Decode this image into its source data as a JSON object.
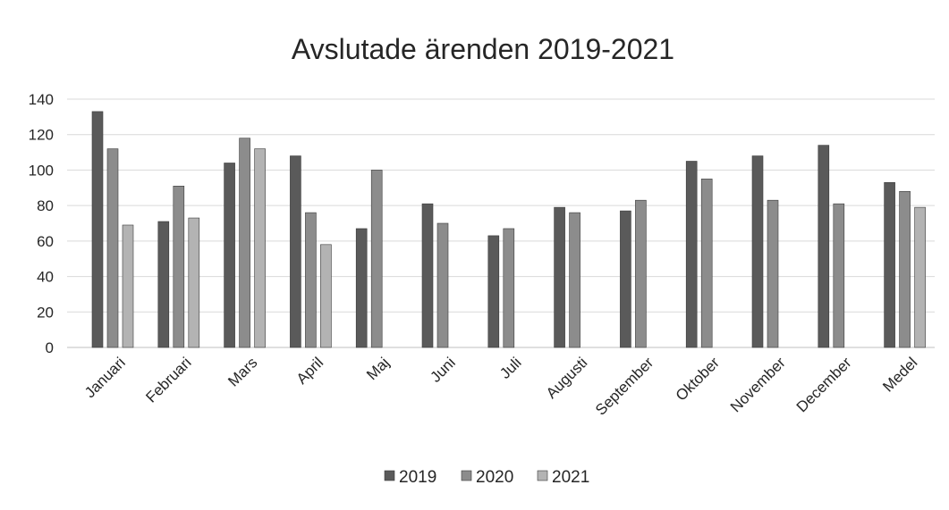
{
  "chart_data": {
    "type": "bar",
    "title": "Avslutade ärenden 2019-2021",
    "xlabel": "",
    "ylabel": "",
    "ylim": [
      0,
      140
    ],
    "yticks": [
      0,
      20,
      40,
      60,
      80,
      100,
      120,
      140
    ],
    "grid": true,
    "legend_position": "bottom",
    "categories": [
      "Januari",
      "Februari",
      "Mars",
      "April",
      "Maj",
      "Juni",
      "Juli",
      "Augusti",
      "September",
      "Oktober",
      "November",
      "December",
      "Medel"
    ],
    "series": [
      {
        "name": "2019",
        "color": "#5a5a5a",
        "values": [
          133,
          71,
          104,
          108,
          67,
          81,
          63,
          79,
          77,
          105,
          108,
          114,
          93
        ]
      },
      {
        "name": "2020",
        "color": "#8c8c8c",
        "values": [
          112,
          91,
          118,
          76,
          100,
          70,
          67,
          76,
          83,
          95,
          83,
          81,
          88
        ]
      },
      {
        "name": "2021",
        "color": "#b3b3b3",
        "values": [
          69,
          73,
          112,
          58,
          null,
          null,
          null,
          null,
          null,
          null,
          null,
          null,
          79
        ]
      }
    ]
  }
}
